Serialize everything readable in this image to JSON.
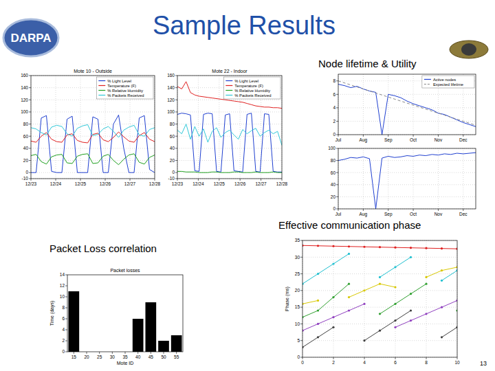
{
  "slide": {
    "title": "Sample Results",
    "logo": "DARPA",
    "labels": [
      "Node lifetime & Utility",
      "Effective communication phase",
      "Packet Loss correlation"
    ],
    "page": 13
  },
  "chart_data": [
    {
      "type": "line",
      "title": "Mote 10 - Outside",
      "x": [
        0,
        5,
        10,
        15,
        20,
        25,
        30,
        35,
        40,
        45,
        50,
        55,
        60,
        65,
        70,
        75,
        80,
        85,
        90,
        95,
        100,
        105,
        110,
        115,
        120
      ],
      "xlim": [
        0,
        120
      ],
      "ylim": [
        -10,
        160
      ],
      "xticks": [
        {
          "value": 0,
          "label": "12/23"
        },
        {
          "value": 24,
          "label": "12/24"
        },
        {
          "value": 48,
          "label": "12/25"
        },
        {
          "value": 72,
          "label": "12/26"
        },
        {
          "value": 96,
          "label": "12/27"
        },
        {
          "value": 120,
          "label": "12/28"
        }
      ],
      "yticks": [
        -10,
        0,
        20,
        40,
        60,
        80,
        100,
        120,
        140,
        160
      ],
      "grid": true,
      "legend": "upper right",
      "series": [
        {
          "name": "% Light Level",
          "color": "#1f3fd0",
          "values": [
            0,
            0,
            90,
            94,
            2,
            0,
            0,
            88,
            93,
            0,
            0,
            0,
            92,
            88,
            0,
            0,
            80,
            95,
            40,
            0,
            0,
            90,
            94,
            5,
            0
          ]
        },
        {
          "name": "Temperature (F)",
          "color": "#e02020",
          "values": [
            52,
            50,
            60,
            66,
            55,
            51,
            50,
            62,
            64,
            53,
            50,
            49,
            63,
            65,
            54,
            51,
            58,
            67,
            59,
            52,
            50,
            61,
            66,
            55,
            51
          ]
        },
        {
          "name": "% Relative Humidity",
          "color": "#20a020",
          "values": [
            28,
            30,
            18,
            14,
            26,
            29,
            30,
            16,
            15,
            27,
            30,
            31,
            15,
            16,
            27,
            30,
            20,
            13,
            22,
            29,
            31,
            17,
            14,
            25,
            29
          ]
        },
        {
          "name": "% Packets Received",
          "color": "#30c8d8",
          "values": [
            74,
            72,
            66,
            62,
            75,
            78,
            76,
            64,
            60,
            73,
            77,
            79,
            61,
            63,
            72,
            76,
            68,
            58,
            70,
            75,
            78,
            62,
            60,
            71,
            74
          ]
        }
      ]
    },
    {
      "type": "line",
      "title": "Mote 22 - Indoor",
      "x": [
        0,
        5,
        10,
        15,
        20,
        25,
        30,
        35,
        40,
        45,
        50,
        55,
        60,
        65,
        70,
        75,
        80,
        85,
        90,
        95,
        100,
        105,
        110,
        115,
        120
      ],
      "xlim": [
        0,
        120
      ],
      "ylim": [
        -10,
        160
      ],
      "xticks": [
        {
          "value": 0,
          "label": "12/23"
        },
        {
          "value": 24,
          "label": "12/24"
        },
        {
          "value": 48,
          "label": "12/25"
        },
        {
          "value": 72,
          "label": "12/26"
        },
        {
          "value": 96,
          "label": "12/27"
        },
        {
          "value": 120,
          "label": "12/28"
        }
      ],
      "yticks": [
        -10,
        0,
        20,
        40,
        60,
        80,
        100,
        120,
        140,
        160
      ],
      "grid": true,
      "legend": "upper right",
      "series": [
        {
          "name": "% Light Level",
          "color": "#1f3fd0",
          "values": [
            96,
            98,
            97,
            95,
            3,
            2,
            96,
            98,
            97,
            2,
            1,
            95,
            97,
            3,
            2,
            1,
            96,
            98,
            2,
            1,
            97,
            96,
            2,
            1,
            1
          ]
        },
        {
          "name": "Temperature (F)",
          "color": "#e02020",
          "values": [
            142,
            138,
            150,
            132,
            128,
            126,
            125,
            124,
            123,
            122,
            121,
            120,
            119,
            118,
            117,
            116,
            114,
            112,
            110,
            109,
            108,
            108,
            107,
            107,
            106
          ]
        },
        {
          "name": "% Relative Humidity",
          "color": "#20a020",
          "values": [
            2,
            2,
            1,
            1,
            1,
            0,
            0,
            0,
            1,
            1,
            0,
            0,
            0,
            1,
            1,
            0,
            0,
            0,
            1,
            0,
            0,
            0,
            1,
            0,
            0
          ]
        },
        {
          "name": "% Packets Received",
          "color": "#30c8d8",
          "values": [
            70,
            64,
            80,
            55,
            76,
            60,
            72,
            50,
            68,
            74,
            58,
            66,
            70,
            62,
            55,
            71,
            64,
            69,
            73,
            60,
            66,
            70,
            64,
            68,
            45
          ]
        }
      ]
    },
    {
      "type": "line",
      "x": [
        0,
        0.25,
        0.5,
        0.75,
        1,
        1.25,
        1.5,
        1.75,
        2,
        2.25,
        2.5,
        2.75,
        3,
        3.25,
        3.5,
        3.75,
        4,
        4.25,
        4.5,
        4.75,
        5,
        5.25,
        5.5
      ],
      "xlim": [
        0,
        5.5
      ],
      "ylim": [
        0,
        9
      ],
      "xticks": [
        {
          "value": 0,
          "label": "Jul"
        },
        {
          "value": 1,
          "label": "Aug"
        },
        {
          "value": 2,
          "label": "Sep"
        },
        {
          "value": 3,
          "label": "Oct"
        },
        {
          "value": 4,
          "label": "Nov"
        },
        {
          "value": 5,
          "label": "Dec"
        }
      ],
      "yticks": [
        0,
        2,
        4,
        6,
        8
      ],
      "grid": true,
      "legend": "upper right",
      "series": [
        {
          "name": "Active nodes",
          "color": "#1f3fd0",
          "values": [
            7.5,
            7.3,
            7.0,
            7.2,
            6.8,
            6.5,
            6.3,
            0,
            6.0,
            5.8,
            5.5,
            5.0,
            4.6,
            4.3,
            4.0,
            3.7,
            3.2,
            3.0,
            2.6,
            2.2,
            1.8,
            1.5,
            1.2
          ]
        },
        {
          "name": "Expected lifetime",
          "color": "#888888",
          "line_style": "dashed",
          "values": [
            8.0,
            7.7,
            7.4,
            7.1,
            6.8,
            6.5,
            6.2,
            5.9,
            5.6,
            5.3,
            5.0,
            4.7,
            4.4,
            4.1,
            3.8,
            3.5,
            3.2,
            2.9,
            2.6,
            2.3,
            2.0,
            1.7,
            1.4
          ]
        }
      ]
    },
    {
      "type": "line",
      "x": [
        0,
        0.25,
        0.5,
        0.75,
        1,
        1.25,
        1.5,
        1.75,
        2,
        2.25,
        2.5,
        2.75,
        3,
        3.25,
        3.5,
        3.75,
        4,
        4.25,
        4.5,
        4.75,
        5,
        5.25,
        5.5
      ],
      "xlim": [
        0,
        5.5
      ],
      "ylim": [
        0,
        100
      ],
      "xticks": [
        {
          "value": 0,
          "label": "Jul"
        },
        {
          "value": 1,
          "label": "Aug"
        },
        {
          "value": 2,
          "label": "Sep"
        },
        {
          "value": 3,
          "label": "Oct"
        },
        {
          "value": 4,
          "label": "Nov"
        },
        {
          "value": 5,
          "label": "Dec"
        }
      ],
      "yticks": [
        0,
        20,
        40,
        60,
        80,
        100
      ],
      "grid": true,
      "series": [
        {
          "color": "#1f3fd0",
          "values": [
            80,
            82,
            85,
            84,
            86,
            83,
            0,
            84,
            87,
            85,
            86,
            88,
            87,
            89,
            88,
            90,
            89,
            91,
            90,
            92,
            91,
            92,
            93
          ]
        }
      ]
    },
    {
      "type": "bar",
      "title": "Packet losses",
      "x_label": "Mote ID",
      "y_label": "Time (days)",
      "categories": [
        "15",
        "20",
        "25",
        "30",
        "35",
        "40",
        "45",
        "50",
        "55"
      ],
      "values": [
        11,
        0,
        0,
        0,
        0,
        6,
        9,
        2,
        3
      ],
      "color": "#000000",
      "ylim": [
        0,
        14
      ],
      "yticks": [
        0,
        2,
        4,
        6,
        8,
        10,
        12,
        14
      ]
    },
    {
      "type": "line",
      "y_label": "Phase (ms)",
      "x": [
        0,
        1,
        2,
        3,
        4,
        5,
        6,
        7,
        8,
        9,
        10
      ],
      "xlim": [
        0,
        10
      ],
      "ylim": [
        0,
        35
      ],
      "xticks": [
        0,
        2,
        4,
        6,
        8,
        10
      ],
      "yticks": [
        0,
        5,
        10,
        15,
        20,
        25,
        30,
        35
      ],
      "grid": true,
      "series": [
        {
          "color": "#e02020",
          "marker": "circle",
          "values": [
            33.5,
            33.4,
            33.3,
            33.2,
            33.1,
            33.0,
            32.9,
            32.8,
            32.7,
            32.6,
            32.5
          ]
        },
        {
          "color": "#20c0d0",
          "marker": "circle",
          "values": [
            22,
            25,
            28,
            31,
            null,
            24,
            27,
            30,
            null,
            23,
            26
          ]
        },
        {
          "color": "#d8c800",
          "marker": "circle",
          "values": [
            16,
            17,
            null,
            18,
            20,
            22,
            21,
            null,
            24,
            26,
            27
          ]
        },
        {
          "color": "#30a030",
          "marker": "circle",
          "values": [
            12,
            14,
            18,
            22,
            null,
            13,
            16,
            19,
            22,
            null,
            14
          ]
        },
        {
          "color": "#9040c0",
          "marker": "circle",
          "values": [
            8,
            10,
            12,
            14,
            16,
            null,
            9,
            11,
            13,
            15,
            17
          ]
        },
        {
          "color": "#404040",
          "marker": "circle",
          "values": [
            3,
            6,
            9,
            null,
            5,
            8,
            11,
            14,
            null,
            6,
            9
          ]
        }
      ]
    }
  ]
}
